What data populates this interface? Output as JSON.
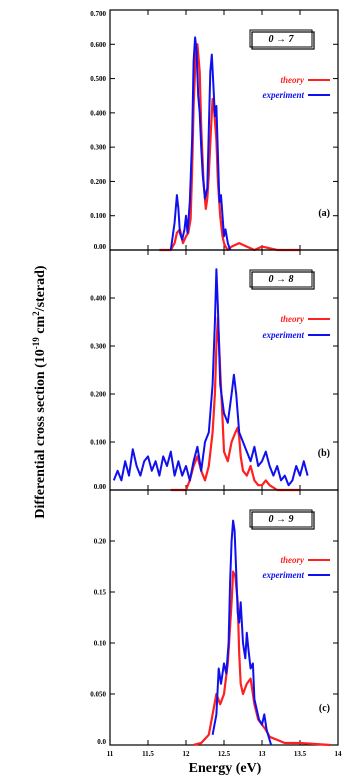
{
  "chart_data": {
    "type": "line",
    "xlabel": "Energy (eV)",
    "ylabel": "Differential cross section (10⁻¹⁹ cm²/sterad)",
    "ylabel_parts": {
      "prefix": "Differential cross section (10",
      "exponent": "-19",
      "middle": " cm",
      "exponent2": "2",
      "suffix": "/sterad)"
    },
    "xlim": [
      11,
      14
    ],
    "x_ticks": [
      11,
      11.5,
      12,
      12.5,
      13,
      13.5,
      14
    ],
    "x_tick_labels": [
      "11",
      "11.5",
      "12",
      "12.5",
      "13",
      "13.5",
      "14"
    ],
    "colors": {
      "theory": "#ff2020",
      "experiment": "#1010ee"
    },
    "panels": [
      {
        "tag": "(a)",
        "transition": "0 → 7",
        "ylim": [
          0,
          0.7
        ],
        "y_ticks": [
          0,
          0.1,
          0.2,
          0.3,
          0.4,
          0.5,
          0.6,
          0.7
        ],
        "y_tick_labels": [
          "0.00",
          "0.100",
          "0.200",
          "0.300",
          "0.400",
          "0.500",
          "0.600",
          "0.700"
        ],
        "series": [
          {
            "name": "theory",
            "x": [
              11.65,
              11.8,
              11.85,
              11.88,
              11.92,
              11.96,
              12.0,
              12.03,
              12.06,
              12.08,
              12.1,
              12.13,
              12.15,
              12.18,
              12.2,
              12.23,
              12.26,
              12.28,
              12.3,
              12.33,
              12.35,
              12.37,
              12.4,
              12.42,
              12.45,
              12.48,
              12.5,
              12.52,
              12.55,
              12.6,
              12.7,
              12.8,
              12.9,
              13.0,
              13.2,
              13.4,
              13.5
            ],
            "y": [
              0.0,
              0.0,
              0.02,
              0.05,
              0.06,
              0.02,
              0.04,
              0.05,
              0.09,
              0.23,
              0.42,
              0.58,
              0.6,
              0.52,
              0.36,
              0.2,
              0.12,
              0.15,
              0.22,
              0.36,
              0.44,
              0.41,
              0.32,
              0.2,
              0.1,
              0.04,
              0.02,
              0.01,
              0.0,
              0.01,
              0.02,
              0.01,
              0.0,
              0.01,
              0.0,
              0.0,
              0.0
            ]
          },
          {
            "name": "experiment",
            "x": [
              11.8,
              11.85,
              11.88,
              11.9,
              11.92,
              11.95,
              11.98,
              12.0,
              12.02,
              12.05,
              12.08,
              12.1,
              12.12,
              12.14,
              12.16,
              12.18,
              12.2,
              12.22,
              12.25,
              12.28,
              12.3,
              12.32,
              12.34,
              12.36,
              12.38,
              12.4,
              12.42,
              12.44,
              12.46,
              12.48,
              12.5,
              12.52,
              12.55,
              12.58
            ],
            "y": [
              0.0,
              0.08,
              0.16,
              0.12,
              0.05,
              0.03,
              0.06,
              0.1,
              0.05,
              0.14,
              0.32,
              0.55,
              0.62,
              0.58,
              0.45,
              0.4,
              0.3,
              0.22,
              0.15,
              0.18,
              0.35,
              0.52,
              0.57,
              0.48,
              0.39,
              0.42,
              0.28,
              0.14,
              0.16,
              0.1,
              0.04,
              0.06,
              0.02,
              0.0
            ]
          }
        ]
      },
      {
        "tag": "(b)",
        "transition": "0 → 8",
        "ylim": [
          0,
          0.5
        ],
        "y_ticks": [
          0,
          0.1,
          0.2,
          0.3,
          0.4
        ],
        "y_tick_labels": [
          "0.00",
          "0.100",
          "0.200",
          "0.300",
          "0.400"
        ],
        "series": [
          {
            "name": "theory",
            "x": [
              11.8,
              12.0,
              12.05,
              12.1,
              12.15,
              12.2,
              12.25,
              12.3,
              12.35,
              12.38,
              12.4,
              12.42,
              12.45,
              12.48,
              12.5,
              12.55,
              12.6,
              12.65,
              12.68,
              12.7,
              12.72,
              12.75,
              12.8,
              12.85,
              12.9,
              12.95,
              13.0,
              13.05,
              13.1,
              13.2,
              13.3,
              13.4,
              13.5
            ],
            "y": [
              0.0,
              0.0,
              0.02,
              0.05,
              0.07,
              0.04,
              0.02,
              0.05,
              0.12,
              0.2,
              0.3,
              0.36,
              0.25,
              0.15,
              0.08,
              0.06,
              0.1,
              0.12,
              0.13,
              0.11,
              0.07,
              0.04,
              0.03,
              0.05,
              0.02,
              0.01,
              0.01,
              0.02,
              0.01,
              0.0,
              0.0,
              0.0,
              0.0
            ]
          },
          {
            "name": "experiment",
            "x": [
              11.05,
              11.1,
              11.15,
              11.2,
              11.25,
              11.3,
              11.35,
              11.4,
              11.45,
              11.5,
              11.55,
              11.6,
              11.65,
              11.7,
              11.75,
              11.8,
              11.85,
              11.9,
              11.95,
              12.0,
              12.05,
              12.1,
              12.15,
              12.2,
              12.25,
              12.3,
              12.35,
              12.38,
              12.4,
              12.42,
              12.45,
              12.5,
              12.55,
              12.6,
              12.63,
              12.66,
              12.7,
              12.75,
              12.8,
              12.85,
              12.9,
              12.95,
              13.0,
              13.05,
              13.1,
              13.15,
              13.2,
              13.25,
              13.3,
              13.35,
              13.4,
              13.45,
              13.5,
              13.55,
              13.6
            ],
            "y": [
              0.02,
              0.04,
              0.02,
              0.06,
              0.03,
              0.085,
              0.05,
              0.03,
              0.06,
              0.07,
              0.04,
              0.06,
              0.03,
              0.07,
              0.05,
              0.08,
              0.03,
              0.06,
              0.03,
              0.05,
              0.02,
              0.06,
              0.09,
              0.04,
              0.1,
              0.12,
              0.22,
              0.35,
              0.46,
              0.38,
              0.22,
              0.16,
              0.14,
              0.2,
              0.24,
              0.2,
              0.12,
              0.1,
              0.08,
              0.06,
              0.09,
              0.05,
              0.06,
              0.08,
              0.05,
              0.03,
              0.05,
              0.02,
              0.03,
              0.01,
              0.02,
              0.05,
              0.03,
              0.06,
              0.03
            ]
          }
        ]
      },
      {
        "tag": "(c)",
        "transition": "0 → 9",
        "ylim": [
          0,
          0.25
        ],
        "y_ticks": [
          0,
          0.05,
          0.1,
          0.15,
          0.2
        ],
        "y_tick_labels": [
          "0.0",
          "0.050",
          "0.10",
          "0.15",
          "0.20"
        ],
        "series": [
          {
            "name": "theory",
            "x": [
              12.1,
              12.2,
              12.3,
              12.35,
              12.4,
              12.45,
              12.5,
              12.55,
              12.6,
              12.62,
              12.65,
              12.68,
              12.7,
              12.72,
              12.75,
              12.8,
              12.85,
              12.9,
              12.95,
              13.0,
              13.05,
              13.1,
              13.2,
              13.3,
              13.5,
              13.7,
              13.9
            ],
            "y": [
              0.0,
              0.002,
              0.01,
              0.03,
              0.05,
              0.04,
              0.05,
              0.08,
              0.14,
              0.17,
              0.165,
              0.14,
              0.09,
              0.06,
              0.05,
              0.06,
              0.065,
              0.04,
              0.025,
              0.02,
              0.015,
              0.008,
              0.005,
              0.002,
              0.002,
              0.001,
              0.0
            ]
          },
          {
            "name": "experiment",
            "x": [
              12.35,
              12.4,
              12.43,
              12.46,
              12.5,
              12.53,
              12.56,
              12.58,
              12.6,
              12.62,
              12.64,
              12.66,
              12.68,
              12.7,
              12.72,
              12.75,
              12.78,
              12.8,
              12.82,
              12.85,
              12.88,
              12.9,
              12.93,
              12.96,
              13.0,
              13.03,
              13.06,
              13.1,
              13.12
            ],
            "y": [
              0.01,
              0.03,
              0.075,
              0.06,
              0.08,
              0.07,
              0.1,
              0.16,
              0.2,
              0.22,
              0.21,
              0.17,
              0.13,
              0.12,
              0.14,
              0.1,
              0.085,
              0.11,
              0.095,
              0.075,
              0.08,
              0.045,
              0.035,
              0.025,
              0.02,
              0.03,
              0.015,
              0.005,
              0.0
            ]
          }
        ]
      }
    ]
  }
}
